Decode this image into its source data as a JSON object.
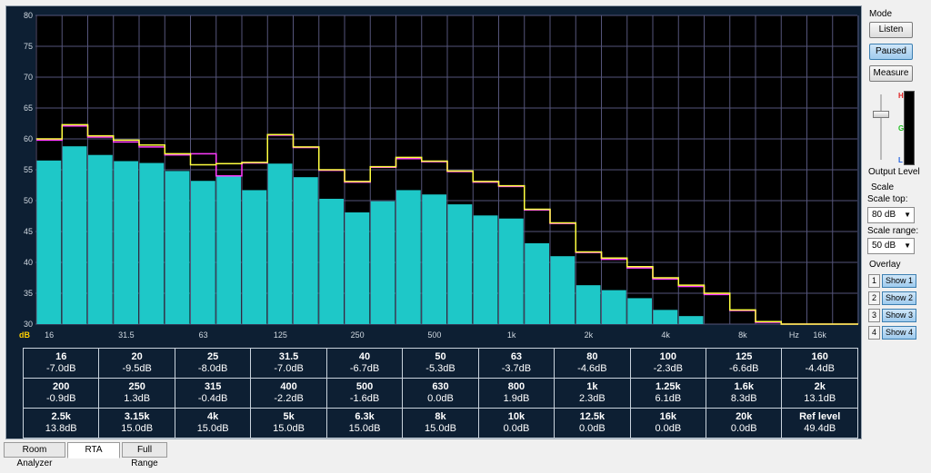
{
  "chart_data": {
    "type": "bar",
    "ylabel_unit": "dB",
    "xlabel_unit": "Hz",
    "ylim": [
      30,
      80
    ],
    "y_ticks": [
      "30",
      "35",
      "40",
      "45",
      "50",
      "55",
      "60",
      "65",
      "70",
      "75",
      "80"
    ],
    "x_tick_labels": [
      "16",
      "31.5",
      "63",
      "125",
      "250",
      "500",
      "1k",
      "2k",
      "4k",
      "8k",
      "16k"
    ],
    "bands": [
      "16",
      "20",
      "25",
      "31.5",
      "40",
      "50",
      "63",
      "80",
      "100",
      "125",
      "160",
      "200",
      "250",
      "315",
      "400",
      "500",
      "630",
      "800",
      "1k",
      "1.25k",
      "1.6k",
      "2k",
      "2.5k",
      "3.15k",
      "4k",
      "5k",
      "6.3k",
      "8k",
      "10k",
      "12.5k",
      "16k",
      "20k"
    ],
    "bar_values": [
      56.5,
      58.8,
      57.4,
      56.4,
      56.1,
      54.8,
      53.2,
      53.9,
      51.7,
      56.0,
      53.8,
      50.3,
      48.1,
      49.9,
      51.7,
      51.0,
      49.4,
      47.6,
      47.1,
      43.1,
      41.0,
      36.3,
      35.5,
      34.2,
      32.3,
      31.3,
      30,
      30,
      30,
      30,
      30,
      30
    ],
    "series": [
      {
        "color": "#ff3cff",
        "values": [
          59.8,
          62.1,
          60.3,
          59.5,
          58.7,
          57.4,
          57.6,
          54.0,
          56.1,
          60.6,
          58.6,
          54.9,
          53.0,
          55.4,
          56.8,
          56.3,
          54.7,
          53.0,
          52.3,
          48.5,
          46.3,
          41.6,
          40.5,
          39.1,
          37.3,
          36.1,
          34.8,
          32.2,
          30.3,
          30,
          30,
          30
        ]
      },
      {
        "color": "#ffff40",
        "values": [
          60.0,
          62.3,
          60.5,
          59.8,
          59.0,
          57.6,
          55.8,
          56.0,
          56.2,
          60.7,
          58.7,
          55.0,
          53.1,
          55.5,
          57.0,
          56.4,
          54.8,
          53.1,
          52.4,
          48.6,
          46.4,
          41.7,
          40.7,
          39.3,
          37.5,
          36.3,
          35.0,
          32.3,
          30.4,
          30,
          30,
          30
        ]
      }
    ]
  },
  "table": {
    "rows": [
      [
        {
          "f": "16",
          "v": "-7.0dB"
        },
        {
          "f": "20",
          "v": "-9.5dB"
        },
        {
          "f": "25",
          "v": "-8.0dB"
        },
        {
          "f": "31.5",
          "v": "-7.0dB"
        },
        {
          "f": "40",
          "v": "-6.7dB"
        },
        {
          "f": "50",
          "v": "-5.3dB"
        },
        {
          "f": "63",
          "v": "-3.7dB"
        },
        {
          "f": "80",
          "v": "-4.6dB"
        },
        {
          "f": "100",
          "v": "-2.3dB"
        },
        {
          "f": "125",
          "v": "-6.6dB"
        },
        {
          "f": "160",
          "v": "-4.4dB"
        }
      ],
      [
        {
          "f": "200",
          "v": "-0.9dB"
        },
        {
          "f": "250",
          "v": "1.3dB"
        },
        {
          "f": "315",
          "v": "-0.4dB"
        },
        {
          "f": "400",
          "v": "-2.2dB"
        },
        {
          "f": "500",
          "v": "-1.6dB"
        },
        {
          "f": "630",
          "v": "0.0dB"
        },
        {
          "f": "800",
          "v": "1.9dB"
        },
        {
          "f": "1k",
          "v": "2.3dB"
        },
        {
          "f": "1.25k",
          "v": "6.1dB"
        },
        {
          "f": "1.6k",
          "v": "8.3dB"
        },
        {
          "f": "2k",
          "v": "13.1dB"
        }
      ],
      [
        {
          "f": "2.5k",
          "v": "13.8dB"
        },
        {
          "f": "3.15k",
          "v": "15.0dB"
        },
        {
          "f": "4k",
          "v": "15.0dB"
        },
        {
          "f": "5k",
          "v": "15.0dB"
        },
        {
          "f": "6.3k",
          "v": "15.0dB"
        },
        {
          "f": "8k",
          "v": "15.0dB"
        },
        {
          "f": "10k",
          "v": "0.0dB"
        },
        {
          "f": "12.5k",
          "v": "0.0dB"
        },
        {
          "f": "16k",
          "v": "0.0dB"
        },
        {
          "f": "20k",
          "v": "0.0dB"
        },
        {
          "f": "Ref level",
          "v": "49.4dB"
        }
      ]
    ]
  },
  "sidebar": {
    "mode_label": "Mode",
    "listen_label": "Listen",
    "paused_label": "Paused",
    "measure_label": "Measure",
    "meter": {
      "h": "H",
      "g": "G",
      "l": "L",
      "label": "Output Level",
      "level": 0.0
    },
    "scale_label": "Scale",
    "scale_top_label": "Scale top:",
    "scale_top_value": "80 dB",
    "scale_range_label": "Scale range:",
    "scale_range_value": "50 dB",
    "overlay_label": "Overlay",
    "overlays": [
      {
        "num": "1",
        "label": "Show 1"
      },
      {
        "num": "2",
        "label": "Show 2"
      },
      {
        "num": "3",
        "label": "Show 3"
      },
      {
        "num": "4",
        "label": "Show 4"
      }
    ]
  },
  "tabs": [
    {
      "label": "Room Analyzer",
      "active": false
    },
    {
      "label": "RTA",
      "active": true
    },
    {
      "label": "Full Range",
      "active": false
    }
  ],
  "colors": {
    "bar": "#1ec8c8",
    "grid": "#55557a",
    "plot_bg": "#000000",
    "frame_bg": "#0d1f33"
  }
}
